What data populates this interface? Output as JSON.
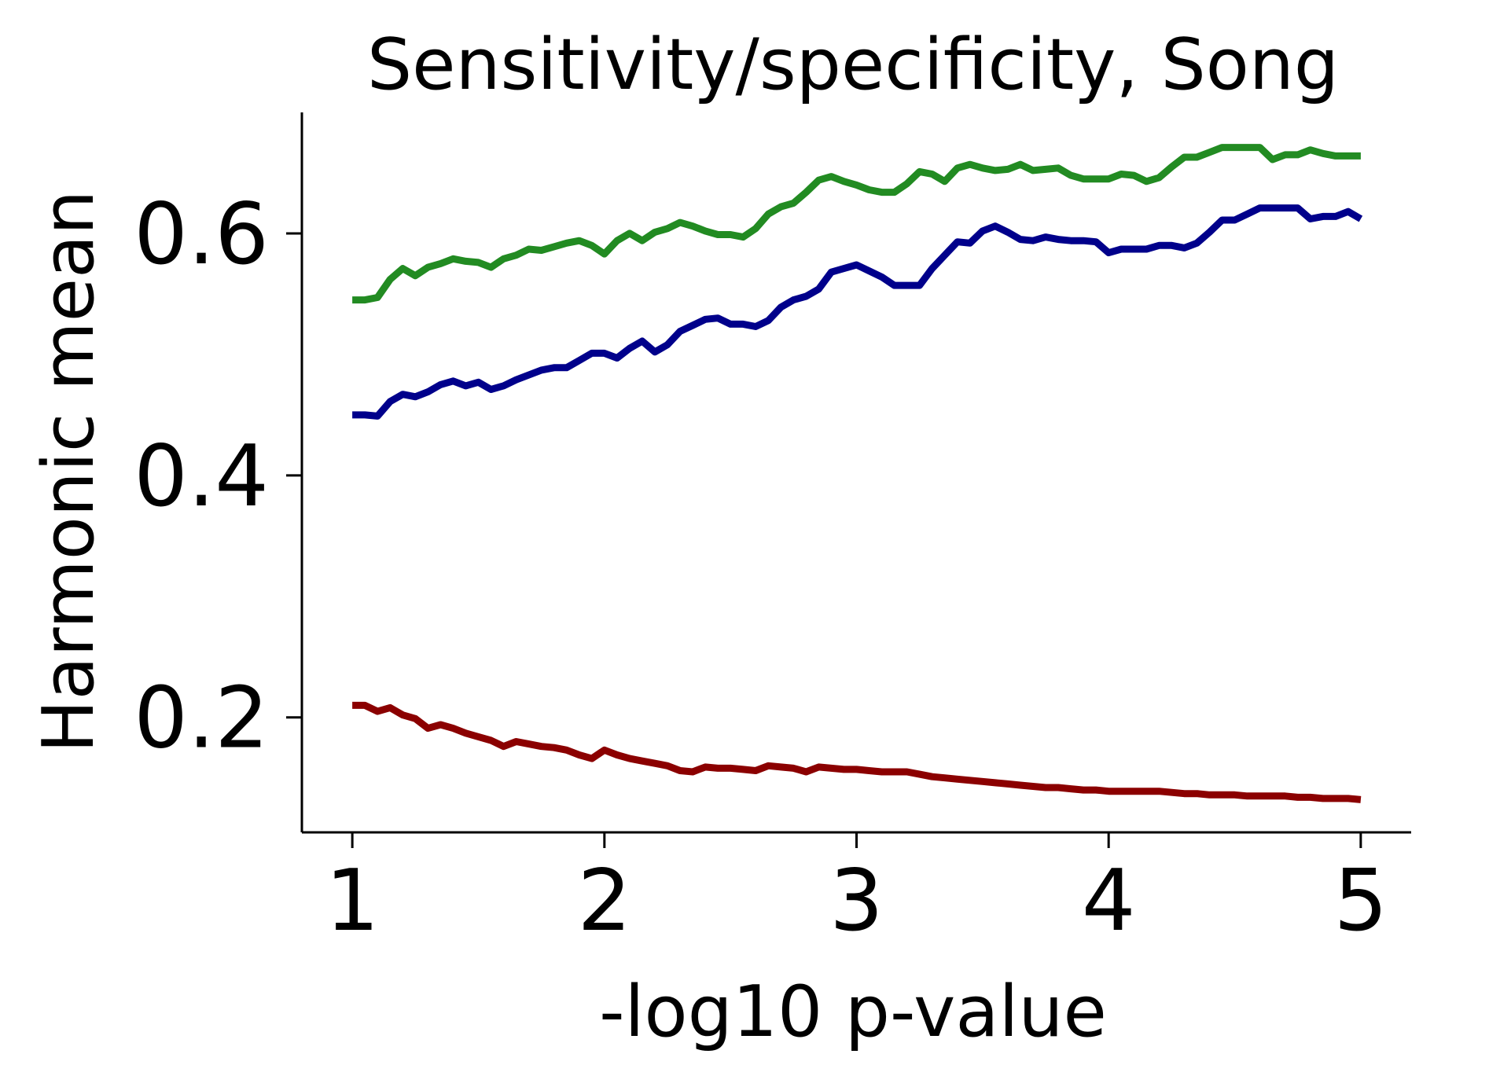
{
  "chart_data": {
    "type": "line",
    "title": "Sensitivity/specificity, Song",
    "xlabel": "-log10 p-value",
    "ylabel": "Harmonic mean",
    "xlim": [
      0.8,
      5.2
    ],
    "ylim": [
      0.105,
      0.7
    ],
    "xticks": [
      "1",
      "2",
      "3",
      "4",
      "5"
    ],
    "yticks": [
      "0.2",
      "0.4",
      "0.6"
    ],
    "grid": false,
    "legend": "none",
    "series": [
      {
        "color": "#228b22",
        "x": [
          1.0,
          1.05,
          1.1,
          1.15,
          1.2,
          1.25,
          1.3,
          1.35,
          1.4,
          1.45,
          1.5,
          1.55,
          1.6,
          1.65,
          1.7,
          1.75,
          1.8,
          1.85,
          1.9,
          1.95,
          2.0,
          2.05,
          2.1,
          2.15,
          2.2,
          2.25,
          2.3,
          2.35,
          2.4,
          2.45,
          2.5,
          2.55,
          2.6,
          2.65,
          2.7,
          2.75,
          2.8,
          2.85,
          2.9,
          2.95,
          3.0,
          3.05,
          3.1,
          3.15,
          3.2,
          3.25,
          3.3,
          3.35,
          3.4,
          3.45,
          3.5,
          3.55,
          3.6,
          3.65,
          3.7,
          3.75,
          3.8,
          3.85,
          3.9,
          3.95,
          4.0,
          4.05,
          4.1,
          4.15,
          4.2,
          4.25,
          4.3,
          4.35,
          4.4,
          4.45,
          4.5,
          4.55,
          4.6,
          4.65,
          4.7,
          4.75,
          4.8,
          4.85,
          4.9,
          4.95,
          5.0
        ],
        "y": [
          0.545,
          0.545,
          0.547,
          0.562,
          0.571,
          0.565,
          0.572,
          0.575,
          0.579,
          0.577,
          0.576,
          0.572,
          0.579,
          0.582,
          0.587,
          0.586,
          0.589,
          0.592,
          0.594,
          0.59,
          0.583,
          0.594,
          0.6,
          0.594,
          0.601,
          0.604,
          0.609,
          0.606,
          0.602,
          0.599,
          0.599,
          0.597,
          0.604,
          0.616,
          0.622,
          0.625,
          0.634,
          0.644,
          0.647,
          0.643,
          0.64,
          0.636,
          0.634,
          0.634,
          0.641,
          0.651,
          0.649,
          0.643,
          0.654,
          0.657,
          0.654,
          0.652,
          0.653,
          0.657,
          0.652,
          0.653,
          0.654,
          0.648,
          0.645,
          0.645,
          0.645,
          0.649,
          0.648,
          0.643,
          0.646,
          0.655,
          0.663,
          0.663,
          0.667,
          0.671,
          0.671,
          0.671,
          0.671,
          0.661,
          0.665,
          0.665,
          0.669,
          0.666,
          0.664,
          0.664,
          0.664
        ]
      },
      {
        "color": "#00008b",
        "x": [
          1.0,
          1.05,
          1.1,
          1.15,
          1.2,
          1.25,
          1.3,
          1.35,
          1.4,
          1.45,
          1.5,
          1.55,
          1.6,
          1.65,
          1.7,
          1.75,
          1.8,
          1.85,
          1.9,
          1.95,
          2.0,
          2.05,
          2.1,
          2.15,
          2.2,
          2.25,
          2.3,
          2.35,
          2.4,
          2.45,
          2.5,
          2.55,
          2.6,
          2.65,
          2.7,
          2.75,
          2.8,
          2.85,
          2.9,
          2.95,
          3.0,
          3.05,
          3.1,
          3.15,
          3.2,
          3.25,
          3.3,
          3.35,
          3.4,
          3.45,
          3.5,
          3.55,
          3.6,
          3.65,
          3.7,
          3.75,
          3.8,
          3.85,
          3.9,
          3.95,
          4.0,
          4.05,
          4.1,
          4.15,
          4.2,
          4.25,
          4.3,
          4.35,
          4.4,
          4.45,
          4.5,
          4.55,
          4.6,
          4.65,
          4.7,
          4.75,
          4.8,
          4.85,
          4.9,
          4.95,
          5.0
        ],
        "y": [
          0.45,
          0.45,
          0.449,
          0.461,
          0.467,
          0.465,
          0.469,
          0.475,
          0.478,
          0.474,
          0.477,
          0.471,
          0.474,
          0.479,
          0.483,
          0.487,
          0.489,
          0.489,
          0.495,
          0.501,
          0.501,
          0.497,
          0.505,
          0.511,
          0.502,
          0.508,
          0.519,
          0.524,
          0.529,
          0.53,
          0.525,
          0.525,
          0.523,
          0.528,
          0.539,
          0.545,
          0.548,
          0.554,
          0.568,
          0.571,
          0.574,
          0.569,
          0.564,
          0.557,
          0.557,
          0.557,
          0.571,
          0.582,
          0.593,
          0.592,
          0.602,
          0.606,
          0.601,
          0.595,
          0.594,
          0.597,
          0.595,
          0.594,
          0.594,
          0.593,
          0.584,
          0.587,
          0.587,
          0.587,
          0.59,
          0.59,
          0.588,
          0.592,
          0.601,
          0.611,
          0.611,
          0.616,
          0.621,
          0.621,
          0.621,
          0.621,
          0.612,
          0.614,
          0.614,
          0.618,
          0.612
        ]
      },
      {
        "color": "#8b0000",
        "x": [
          1.0,
          1.05,
          1.1,
          1.15,
          1.2,
          1.25,
          1.3,
          1.35,
          1.4,
          1.45,
          1.5,
          1.55,
          1.6,
          1.65,
          1.7,
          1.75,
          1.8,
          1.85,
          1.9,
          1.95,
          2.0,
          2.05,
          2.1,
          2.15,
          2.2,
          2.25,
          2.3,
          2.35,
          2.4,
          2.45,
          2.5,
          2.55,
          2.6,
          2.65,
          2.7,
          2.75,
          2.8,
          2.85,
          2.9,
          2.95,
          3.0,
          3.05,
          3.1,
          3.15,
          3.2,
          3.25,
          3.3,
          3.35,
          3.4,
          3.45,
          3.5,
          3.55,
          3.6,
          3.65,
          3.7,
          3.75,
          3.8,
          3.85,
          3.9,
          3.95,
          4.0,
          4.05,
          4.1,
          4.15,
          4.2,
          4.25,
          4.3,
          4.35,
          4.4,
          4.45,
          4.5,
          4.55,
          4.6,
          4.65,
          4.7,
          4.75,
          4.8,
          4.85,
          4.9,
          4.95,
          5.0
        ],
        "y": [
          0.21,
          0.21,
          0.205,
          0.208,
          0.202,
          0.199,
          0.191,
          0.194,
          0.191,
          0.187,
          0.184,
          0.181,
          0.176,
          0.18,
          0.178,
          0.176,
          0.175,
          0.173,
          0.169,
          0.166,
          0.173,
          0.169,
          0.166,
          0.164,
          0.162,
          0.16,
          0.156,
          0.155,
          0.159,
          0.158,
          0.158,
          0.157,
          0.156,
          0.16,
          0.159,
          0.158,
          0.155,
          0.159,
          0.158,
          0.157,
          0.157,
          0.156,
          0.155,
          0.155,
          0.155,
          0.153,
          0.151,
          0.15,
          0.149,
          0.148,
          0.147,
          0.146,
          0.145,
          0.144,
          0.143,
          0.142,
          0.142,
          0.141,
          0.14,
          0.14,
          0.139,
          0.139,
          0.139,
          0.139,
          0.139,
          0.138,
          0.137,
          0.137,
          0.136,
          0.136,
          0.136,
          0.135,
          0.135,
          0.135,
          0.135,
          0.134,
          0.134,
          0.133,
          0.133,
          0.133,
          0.132
        ]
      }
    ]
  }
}
